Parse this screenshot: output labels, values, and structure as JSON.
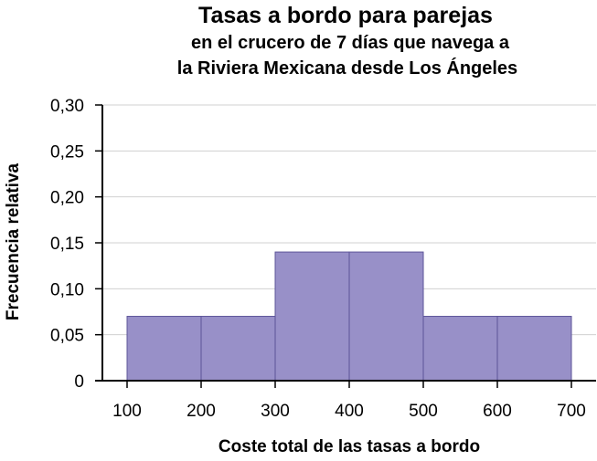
{
  "chart_data": {
    "type": "bar",
    "title": "Tasas a bordo para parejas",
    "subtitle_lines": [
      "en el crucero de 7 días que navega a",
      "la Riviera Mexicana desde Los Ángeles"
    ],
    "xlabel": "Coste total de las tasas a bordo",
    "ylabel": "Frecuencia relativa",
    "bins": [
      {
        "start": 100,
        "end": 200,
        "value": 0.07
      },
      {
        "start": 200,
        "end": 300,
        "value": 0.07
      },
      {
        "start": 300,
        "end": 400,
        "value": 0.14
      },
      {
        "start": 400,
        "end": 500,
        "value": 0.14
      },
      {
        "start": 500,
        "end": 600,
        "value": 0.07
      },
      {
        "start": 600,
        "end": 700,
        "value": 0.07
      }
    ],
    "x_ticks": [
      "100",
      "200",
      "300",
      "400",
      "500",
      "600",
      "700"
    ],
    "y_ticks": [
      {
        "value": 0,
        "label": "0"
      },
      {
        "value": 0.05,
        "label": "0,05"
      },
      {
        "value": 0.1,
        "label": "0,10"
      },
      {
        "value": 0.15,
        "label": "0,15"
      },
      {
        "value": 0.2,
        "label": "0,20"
      },
      {
        "value": 0.25,
        "label": "0,25"
      },
      {
        "value": 0.3,
        "label": "0,30"
      }
    ],
    "xlim": [
      100,
      700
    ],
    "ylim": [
      0,
      0.3
    ],
    "grid": true,
    "colors": {
      "bar_fill": "#9890c8",
      "bar_stroke": "#5c5499",
      "grid": "#d0d0d0",
      "axis": "#000000"
    }
  }
}
